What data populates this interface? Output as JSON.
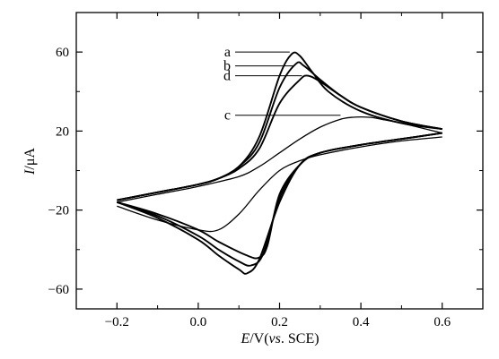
{
  "chart_data": {
    "type": "line",
    "title": "",
    "xlabel": {
      "var": "E",
      "rest": "/V(",
      "ital": "vs",
      "tail": ". SCE)"
    },
    "ylabel": {
      "var": "I",
      "rest": "/μA"
    },
    "xlim": [
      -0.3,
      0.7
    ],
    "ylim": [
      -70,
      80
    ],
    "xticks": [
      -0.2,
      0.0,
      0.2,
      0.4,
      0.6
    ],
    "xtick_labels": [
      "−0.2",
      "0.0",
      "0.2",
      "0.4",
      "0.6"
    ],
    "yticks": [
      -60,
      -20,
      20,
      60
    ],
    "ytick_labels": [
      "−60",
      "−20",
      "20",
      "60"
    ],
    "x_minor_ticks": [
      -0.1,
      0.1,
      0.3,
      0.5
    ],
    "y_minor_ticks": [
      -40,
      0,
      40
    ],
    "grid": false,
    "legend": "leader-line labels, top-center",
    "series": [
      {
        "name": "a",
        "label_y": 60,
        "pointer_x": 0.225,
        "forward": [
          [
            -0.2,
            -15
          ],
          [
            -0.1,
            -11
          ],
          [
            0,
            -7
          ],
          [
            0.05,
            -4
          ],
          [
            0.1,
            2
          ],
          [
            0.15,
            17
          ],
          [
            0.2,
            48
          ],
          [
            0.23,
            59
          ],
          [
            0.25,
            58
          ],
          [
            0.28,
            50
          ],
          [
            0.32,
            40
          ],
          [
            0.4,
            30
          ],
          [
            0.5,
            24
          ],
          [
            0.6,
            21
          ]
        ],
        "reverse": [
          [
            0.6,
            19
          ],
          [
            0.5,
            16
          ],
          [
            0.4,
            13
          ],
          [
            0.3,
            9
          ],
          [
            0.25,
            3
          ],
          [
            0.2,
            -16
          ],
          [
            0.15,
            -45
          ],
          [
            0.12,
            -52
          ],
          [
            0.1,
            -50
          ],
          [
            0.05,
            -43
          ],
          [
            0,
            -35
          ],
          [
            -0.1,
            -24
          ],
          [
            -0.2,
            -16
          ]
        ]
      },
      {
        "name": "b",
        "label_y": 53,
        "pointer_x": 0.235,
        "forward": [
          [
            -0.2,
            -15
          ],
          [
            -0.1,
            -11
          ],
          [
            0,
            -7
          ],
          [
            0.05,
            -4
          ],
          [
            0.1,
            2
          ],
          [
            0.15,
            14
          ],
          [
            0.2,
            42
          ],
          [
            0.24,
            54
          ],
          [
            0.26,
            53
          ],
          [
            0.3,
            46
          ],
          [
            0.35,
            38
          ],
          [
            0.4,
            32
          ],
          [
            0.5,
            25
          ],
          [
            0.6,
            21
          ]
        ],
        "reverse": [
          [
            0.6,
            19
          ],
          [
            0.5,
            16
          ],
          [
            0.4,
            13
          ],
          [
            0.3,
            9
          ],
          [
            0.25,
            3
          ],
          [
            0.2,
            -14
          ],
          [
            0.16,
            -42
          ],
          [
            0.13,
            -48
          ],
          [
            0.1,
            -46
          ],
          [
            0.05,
            -40
          ],
          [
            0,
            -33
          ],
          [
            -0.1,
            -23
          ],
          [
            -0.2,
            -16
          ]
        ]
      },
      {
        "name": "d",
        "label_y": 48,
        "pointer_x": 0.255,
        "forward": [
          [
            -0.2,
            -15
          ],
          [
            -0.1,
            -11
          ],
          [
            0,
            -7
          ],
          [
            0.05,
            -4
          ],
          [
            0.1,
            1
          ],
          [
            0.15,
            11
          ],
          [
            0.2,
            34
          ],
          [
            0.25,
            46
          ],
          [
            0.27,
            48
          ],
          [
            0.3,
            45
          ],
          [
            0.35,
            38
          ],
          [
            0.4,
            32
          ],
          [
            0.5,
            25
          ],
          [
            0.6,
            21
          ]
        ],
        "reverse": [
          [
            0.6,
            19
          ],
          [
            0.5,
            16
          ],
          [
            0.4,
            13
          ],
          [
            0.3,
            9
          ],
          [
            0.25,
            3
          ],
          [
            0.2,
            -12
          ],
          [
            0.17,
            -38
          ],
          [
            0.15,
            -44
          ],
          [
            0.12,
            -43
          ],
          [
            0.05,
            -36
          ],
          [
            0,
            -30
          ],
          [
            -0.1,
            -22
          ],
          [
            -0.2,
            -16
          ]
        ]
      },
      {
        "name": "c",
        "label_y": 28,
        "pointer_x": 0.35,
        "forward": [
          [
            -0.2,
            -16
          ],
          [
            -0.1,
            -12
          ],
          [
            0,
            -8
          ],
          [
            0.1,
            -3
          ],
          [
            0.15,
            2
          ],
          [
            0.2,
            9
          ],
          [
            0.25,
            16
          ],
          [
            0.3,
            22
          ],
          [
            0.35,
            26
          ],
          [
            0.38,
            27
          ],
          [
            0.42,
            27
          ],
          [
            0.45,
            26
          ],
          [
            0.5,
            24
          ],
          [
            0.6,
            19
          ]
        ],
        "reverse": [
          [
            0.6,
            17
          ],
          [
            0.5,
            15
          ],
          [
            0.4,
            12
          ],
          [
            0.3,
            8
          ],
          [
            0.25,
            5
          ],
          [
            0.2,
            0
          ],
          [
            0.15,
            -10
          ],
          [
            0.1,
            -22
          ],
          [
            0.05,
            -30
          ],
          [
            0,
            -30
          ],
          [
            -0.1,
            -25
          ],
          [
            -0.2,
            -18
          ]
        ]
      }
    ]
  }
}
